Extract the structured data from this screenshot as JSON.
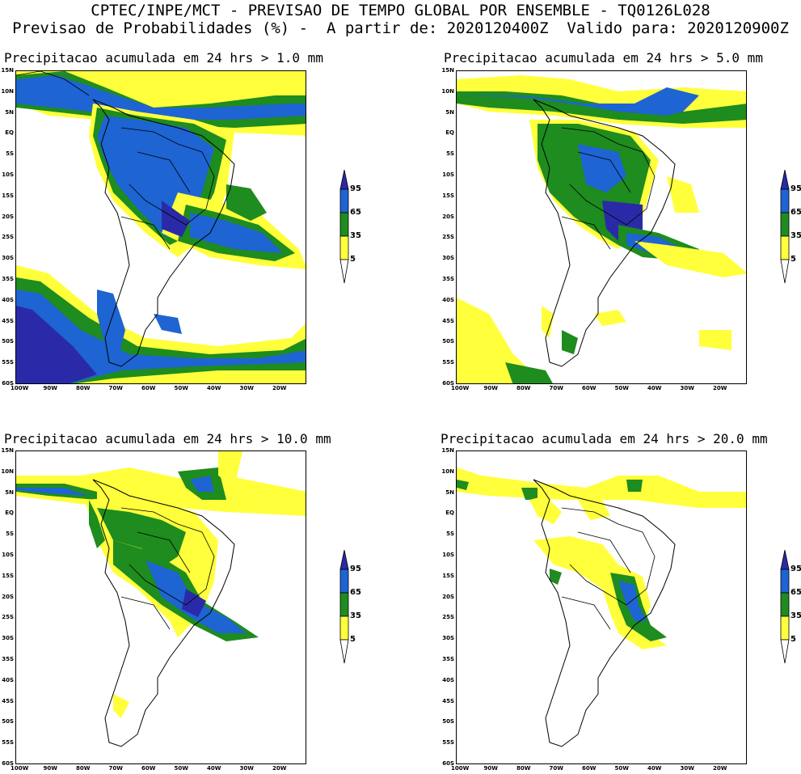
{
  "header": {
    "line1": "CPTEC/INPE/MCT - PREVISAO DE TEMPO GLOBAL POR ENSEMBLE - TQ0126L028",
    "line2": "Previsao de Probabilidades (%) -  A partir de: 2020120400Z  Valido para: 2020120900Z"
  },
  "panels": [
    {
      "title": "Precipitacao acumulada em 24 hrs > 1.0 mm"
    },
    {
      "title": "Precipitacao acumulada em 24 hrs > 5.0 mm"
    },
    {
      "title": "Precipitacao acumulada em 24 hrs > 10.0 mm"
    },
    {
      "title": "Precipitacao acumulada em 24 hrs > 20.0 mm"
    }
  ],
  "axes": {
    "lat_labels": [
      "15N",
      "10N",
      "5N",
      "EQ",
      "5S",
      "10S",
      "15S",
      "20S",
      "25S",
      "30S",
      "35S",
      "40S",
      "45S",
      "50S",
      "55S",
      "60S"
    ],
    "lon_labels": [
      "100W",
      "90W",
      "80W",
      "70W",
      "60W",
      "50W",
      "40W",
      "30W",
      "20W"
    ]
  },
  "colorbar": {
    "labels": [
      "95",
      "65",
      "35",
      "5"
    ],
    "colors": {
      "c95": "#2a2aa8",
      "c65": "#1e64d2",
      "c35": "#1e8c1e",
      "c5": "#ffff3c",
      "below": "#ffffff"
    }
  }
}
